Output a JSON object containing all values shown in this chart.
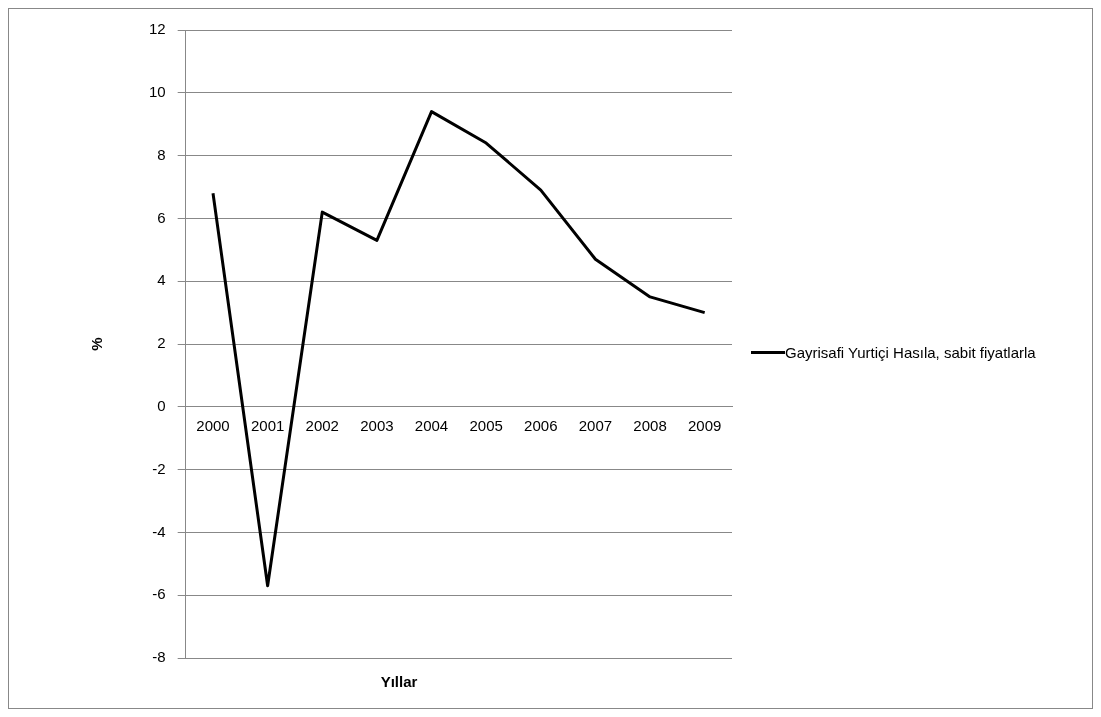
{
  "chart_data": {
    "type": "line",
    "xlabel": "Yıllar",
    "ylabel": "%",
    "categories": [
      "2000",
      "2001",
      "2002",
      "2003",
      "2004",
      "2005",
      "2006",
      "2007",
      "2008",
      "2009"
    ],
    "series": [
      {
        "name": "Gayrisafi Yurtiçi Hasıla, sabit fiyatlarla",
        "color": "#000000",
        "values": [
          6.8,
          -5.7,
          6.2,
          5.3,
          9.4,
          8.4,
          6.9,
          4.7,
          3.5,
          3.0
        ]
      }
    ],
    "ylim": [
      -8,
      12
    ],
    "yticks": [
      -8,
      -6,
      -4,
      -2,
      0,
      2,
      4,
      6,
      8,
      10,
      12
    ],
    "grid": "y",
    "legend": "right",
    "marker": "none",
    "line_style": "solid"
  }
}
